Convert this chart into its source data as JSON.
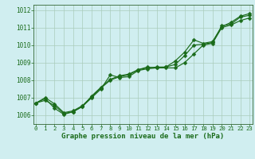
{
  "xlabel": "Graphe pression niveau de la mer (hPa)",
  "background_color": "#d0eef0",
  "plot_bg_color": "#d0eef0",
  "grid_color": "#aaccbb",
  "line_color": "#1a6b1a",
  "spine_color": "#336633",
  "xlim": [
    -0.3,
    23.3
  ],
  "ylim": [
    1005.5,
    1012.3
  ],
  "yticks": [
    1006,
    1007,
    1008,
    1009,
    1010,
    1011,
    1012
  ],
  "xticks": [
    0,
    1,
    2,
    3,
    4,
    5,
    6,
    7,
    8,
    9,
    10,
    11,
    12,
    13,
    14,
    15,
    16,
    17,
    18,
    19,
    20,
    21,
    22,
    23
  ],
  "series": [
    [
      1006.7,
      1006.85,
      1006.55,
      1006.1,
      1006.2,
      1006.5,
      1007.0,
      1007.5,
      1008.3,
      1008.15,
      1008.2,
      1008.55,
      1008.65,
      1008.7,
      1008.7,
      1008.7,
      1009.0,
      1009.5,
      1010.0,
      1010.1,
      1011.0,
      1011.15,
      1011.4,
      1011.55
    ],
    [
      1006.7,
      1007.0,
      1006.65,
      1006.15,
      1006.25,
      1006.55,
      1007.05,
      1007.55,
      1008.0,
      1008.2,
      1008.3,
      1008.6,
      1008.7,
      1008.75,
      1008.75,
      1008.9,
      1009.4,
      1010.0,
      1010.05,
      1010.15,
      1011.1,
      1011.2,
      1011.6,
      1011.7
    ],
    [
      1006.7,
      1006.95,
      1006.4,
      1006.05,
      1006.2,
      1006.5,
      1007.1,
      1007.6,
      1008.05,
      1008.25,
      1008.35,
      1008.6,
      1008.75,
      1008.7,
      1008.75,
      1009.1,
      1009.6,
      1010.3,
      1010.1,
      1010.2,
      1011.05,
      1011.3,
      1011.65,
      1011.8
    ]
  ],
  "tick_fontsize": 5.5,
  "xlabel_fontsize": 6.5,
  "marker_size": 2.5,
  "line_width": 0.85
}
